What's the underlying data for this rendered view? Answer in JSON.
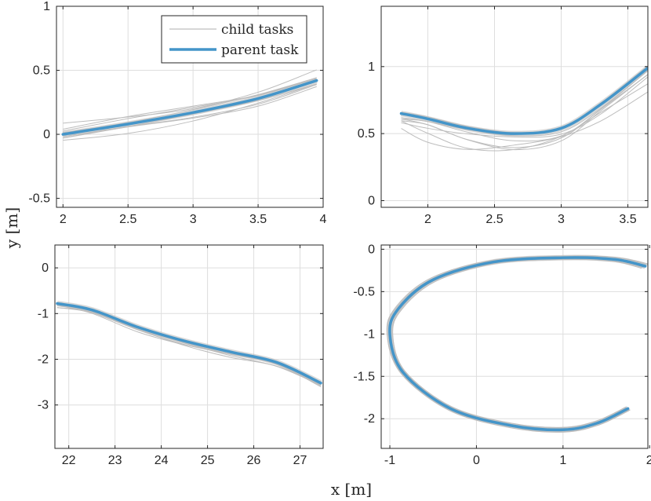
{
  "figure": {
    "xlabel": "x [m]",
    "ylabel": "y [m]"
  },
  "legend": {
    "child_label": "child tasks",
    "parent_label": "parent task"
  },
  "colors": {
    "parent": "#4495c9",
    "child": "#bdbdbd"
  },
  "chart_data": [
    {
      "type": "line",
      "xlim": [
        1.95,
        4.0
      ],
      "ylim": [
        -0.57,
        1.0
      ],
      "xticks": [
        2,
        2.5,
        3,
        3.5,
        4
      ],
      "xtick_labels": [
        "2",
        "2.5",
        "3",
        "3.5",
        "4"
      ],
      "yticks": [
        -0.5,
        0,
        0.5,
        1
      ],
      "ytick_labels": [
        "-0.5",
        "0",
        "0.5",
        "1"
      ],
      "legend": "top-right",
      "parent": [
        [
          2.0,
          0.0
        ],
        [
          2.5,
          0.08
        ],
        [
          3.0,
          0.17
        ],
        [
          3.5,
          0.28
        ],
        [
          3.95,
          0.42
        ]
      ],
      "child_offsets": [
        0.04,
        -0.03,
        0.06,
        -0.05,
        0.02,
        -0.02,
        0.03,
        -0.04
      ]
    },
    {
      "type": "line",
      "xlim": [
        1.65,
        3.65
      ],
      "ylim": [
        -0.05,
        1.45
      ],
      "xticks": [
        2,
        2.5,
        3,
        3.5
      ],
      "xtick_labels": [
        "2",
        "2.5",
        "3",
        "3.5"
      ],
      "yticks": [
        0,
        0.5,
        1
      ],
      "ytick_labels": [
        "0",
        "0.5",
        "1"
      ],
      "parent": [
        [
          1.8,
          0.65
        ],
        [
          2.0,
          0.61
        ],
        [
          2.3,
          0.54
        ],
        [
          2.65,
          0.5
        ],
        [
          3.0,
          0.54
        ],
        [
          3.3,
          0.72
        ],
        [
          3.65,
          0.99
        ]
      ],
      "child_offsets": [
        -0.04,
        -0.07,
        -0.1,
        -0.12,
        -0.05,
        -0.02,
        0.01,
        -0.08
      ]
    },
    {
      "type": "line",
      "xlim": [
        21.7,
        27.5
      ],
      "ylim": [
        -3.95,
        0.5
      ],
      "xticks": [
        22,
        23,
        24,
        25,
        26,
        27
      ],
      "xtick_labels": [
        "22",
        "23",
        "24",
        "25",
        "26",
        "27"
      ],
      "yticks": [
        -3,
        -2,
        -1,
        0
      ],
      "ytick_labels": [
        "-3",
        "-2",
        "-1",
        "0"
      ],
      "parent": [
        [
          21.75,
          -0.78
        ],
        [
          22.5,
          -0.92
        ],
        [
          23.5,
          -1.3
        ],
        [
          24.5,
          -1.6
        ],
        [
          25.5,
          -1.84
        ],
        [
          26.5,
          -2.07
        ],
        [
          27.45,
          -2.52
        ]
      ],
      "child_offsets": [
        -0.03,
        -0.05,
        -0.07,
        -0.04,
        -0.02,
        -0.06,
        -0.08,
        -0.01
      ]
    },
    {
      "type": "line",
      "xlim": [
        -1.1,
        1.98
      ],
      "ylim": [
        -2.35,
        0.05
      ],
      "xticks": [
        -1,
        0,
        1,
        2
      ],
      "xtick_labels": [
        "-1",
        "0",
        "1",
        "2"
      ],
      "yticks": [
        -2,
        -1.5,
        -1,
        -0.5,
        0
      ],
      "ytick_labels": [
        "-2",
        "-1.5",
        "-1",
        "-0.5",
        "0"
      ],
      "parent": [
        [
          1.95,
          -0.2
        ],
        [
          1.6,
          -0.12
        ],
        [
          1.0,
          -0.1
        ],
        [
          0.2,
          -0.15
        ],
        [
          -0.5,
          -0.36
        ],
        [
          -0.9,
          -0.7
        ],
        [
          -1.0,
          -1.0
        ],
        [
          -0.85,
          -1.45
        ],
        [
          -0.3,
          -1.88
        ],
        [
          0.4,
          -2.08
        ],
        [
          1.0,
          -2.13
        ],
        [
          1.4,
          -2.05
        ],
        [
          1.75,
          -1.88
        ]
      ],
      "child_offsets": [
        0.03,
        -0.02,
        0.04,
        -0.03,
        0.02,
        -0.04,
        0.01,
        -0.01
      ]
    }
  ]
}
